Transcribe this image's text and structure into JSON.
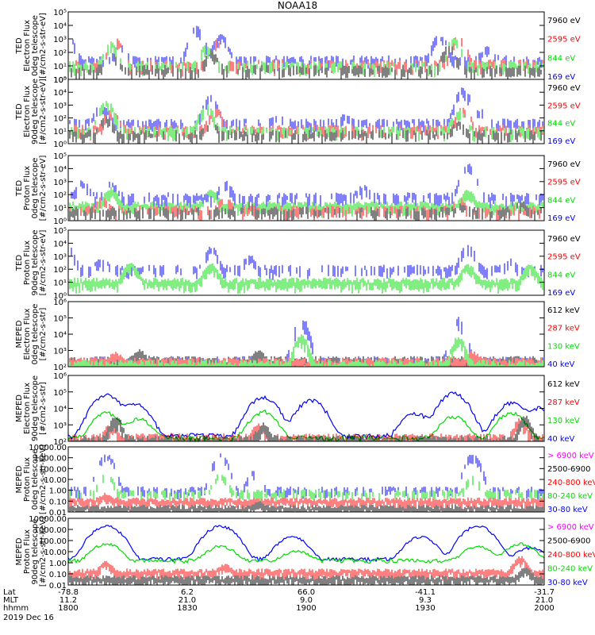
{
  "title": "NOAA18",
  "colors": {
    "black": "#000000",
    "red": "#ff0000",
    "green": "#00dd00",
    "blue": "#0000ff",
    "magenta": "#ff00ff"
  },
  "footer": {
    "row_labels": [
      "Lat",
      "MLT",
      "hhmm"
    ],
    "columns": [
      {
        "lat": "-78.8",
        "mlt": "11.2",
        "hhmm": "1800"
      },
      {
        "lat": "6.2",
        "mlt": "21.0",
        "hhmm": "1830"
      },
      {
        "lat": "66.0",
        "mlt": "9.0",
        "hhmm": "1900"
      },
      {
        "lat": "-41.1",
        "mlt": "9.3",
        "hhmm": "1930"
      },
      {
        "lat": "-31.7",
        "mlt": "21.0",
        "hhmm": "2000"
      }
    ],
    "date": "2019 Dec 16"
  },
  "chart_data": [
    {
      "type": "line",
      "ylabel": [
        "TED",
        "Electron Flux",
        "0deg telescope",
        "[#/cm2-s-str-eV]"
      ],
      "ytick_labels": [
        "10⁰",
        "10¹",
        "10²",
        "10³",
        "10⁴",
        "10⁵"
      ],
      "ylim": [
        1,
        100000
      ],
      "yscale": "log",
      "legend": [
        {
          "label": "7960 eV",
          "color": "black"
        },
        {
          "label": "2595 eV",
          "color": "red"
        },
        {
          "label": "844 eV",
          "color": "green"
        },
        {
          "label": "169 eV",
          "color": "blue"
        }
      ],
      "series": [
        {
          "color": "blue",
          "mode": "spikes",
          "base": 40,
          "peaks": [
            [
              0.0,
              1500
            ],
            [
              0.11,
              300
            ],
            [
              0.27,
              8000
            ],
            [
              0.32,
              2000
            ],
            [
              0.78,
              2000
            ],
            [
              0.88,
              200
            ]
          ]
        },
        {
          "color": "red",
          "mode": "spikes",
          "base": 20,
          "peaks": [
            [
              0.1,
              1000
            ],
            [
              0.31,
              900
            ],
            [
              0.82,
              2000
            ]
          ]
        },
        {
          "color": "green",
          "mode": "spikes",
          "base": 15,
          "peaks": [
            [
              0.09,
              500
            ],
            [
              0.29,
              300
            ],
            [
              0.81,
              1000
            ]
          ]
        },
        {
          "color": "black",
          "mode": "spikes",
          "base": 8,
          "peaks": [
            [
              0.09,
              100
            ],
            [
              0.3,
              100
            ],
            [
              0.8,
              300
            ]
          ]
        }
      ]
    },
    {
      "type": "line",
      "ylabel": [
        "TED",
        "Electron Flux",
        "90deg telescope",
        "[#/cm2-s-str-eV]"
      ],
      "ytick_labels": [
        "10⁰",
        "10¹",
        "10²",
        "10³",
        "10⁴",
        "10⁵"
      ],
      "ylim": [
        1,
        100000
      ],
      "yscale": "log",
      "legend": [
        {
          "label": "7960 eV",
          "color": "black"
        },
        {
          "label": "2595 eV",
          "color": "red"
        },
        {
          "label": "844 eV",
          "color": "green"
        },
        {
          "label": "169 eV",
          "color": "blue"
        }
      ],
      "series": [
        {
          "color": "blue",
          "mode": "spikes",
          "base": 60,
          "peaks": [
            [
              0.07,
              1000
            ],
            [
              0.3,
              5000
            ],
            [
              0.44,
              100
            ],
            [
              0.58,
              100
            ],
            [
              0.83,
              20000
            ],
            [
              0.87,
              500
            ]
          ]
        },
        {
          "color": "red",
          "mode": "spikes",
          "base": 20,
          "peaks": [
            [
              0.09,
              400
            ],
            [
              0.31,
              500
            ],
            [
              0.83,
              600
            ]
          ]
        },
        {
          "color": "green",
          "mode": "spikes",
          "base": 15,
          "peaks": [
            [
              0.08,
              2000
            ],
            [
              0.29,
              1000
            ],
            [
              0.82,
              400
            ]
          ]
        },
        {
          "color": "black",
          "mode": "spikes",
          "base": 8,
          "peaks": [
            [
              0.08,
              100
            ],
            [
              0.3,
              40
            ],
            [
              0.82,
              50
            ]
          ]
        }
      ]
    },
    {
      "type": "line",
      "ylabel": [
        "TED",
        "Proton Flux",
        "0deg telescope",
        "[#/cm2-s-str-eV]"
      ],
      "ytick_labels": [
        "10⁰",
        "10¹",
        "10²",
        "10³",
        "10⁴",
        "10⁵"
      ],
      "ylim": [
        1,
        100000
      ],
      "yscale": "log",
      "legend": [
        {
          "label": "7960 eV",
          "color": "black"
        },
        {
          "label": "2595 eV",
          "color": "red"
        },
        {
          "label": "844 eV",
          "color": "green"
        },
        {
          "label": "169 eV",
          "color": "blue"
        }
      ],
      "series": [
        {
          "color": "green",
          "mode": "noise",
          "base": 20,
          "peaks": [
            [
              0.09,
              300
            ],
            [
              0.3,
              200
            ],
            [
              0.84,
              200
            ]
          ]
        },
        {
          "color": "blue",
          "mode": "spikes",
          "base": 100,
          "peaks": [
            [
              0.03,
              1000
            ],
            [
              0.09,
              800
            ],
            [
              0.33,
              1000
            ],
            [
              0.62,
              400
            ],
            [
              0.84,
              20000
            ]
          ]
        },
        {
          "color": "red",
          "mode": "spikes",
          "base": 10,
          "peaks": [
            [
              0.07,
              50
            ],
            [
              0.33,
              50
            ],
            [
              0.82,
              40
            ]
          ]
        },
        {
          "color": "black",
          "mode": "spikes",
          "base": 8,
          "peaks": [
            [
              0.38,
              15
            ],
            [
              0.83,
              10
            ],
            [
              0.95,
              20
            ]
          ]
        }
      ]
    },
    {
      "type": "line",
      "ylabel": [
        "TED",
        "Proton Flux",
        "90deg telescope",
        "[#/cm2-s-str-eV]"
      ],
      "ytick_labels": [
        "10⁰",
        "10¹",
        "10²",
        "10³",
        "10⁴",
        "10⁵"
      ],
      "ylim": [
        1,
        100000
      ],
      "yscale": "log",
      "legend": [
        {
          "label": "7960 eV",
          "color": "black"
        },
        {
          "label": "2595 eV",
          "color": "red"
        },
        {
          "label": "844 eV",
          "color": "green"
        },
        {
          "label": "169 eV",
          "color": "blue"
        }
      ],
      "series": [
        {
          "color": "blue",
          "mode": "spikes",
          "base": 150,
          "peaks": [
            [
              0.0,
              5000
            ],
            [
              0.07,
              500
            ],
            [
              0.3,
              5000
            ],
            [
              0.38,
              1000
            ],
            [
              0.84,
              8000
            ],
            [
              0.93,
              400
            ]
          ]
        },
        {
          "color": "green",
          "mode": "noise",
          "base": 15,
          "peaks": [
            [
              0.13,
              300
            ],
            [
              0.3,
              300
            ],
            [
              0.84,
              200
            ],
            [
              0.97,
              200
            ]
          ]
        }
      ]
    },
    {
      "type": "line",
      "ylabel": [
        "MEPED",
        "Electron Flux",
        "0deg telescope",
        "[#/cm2-s-str]"
      ],
      "ytick_labels": [
        "10²",
        "10³",
        "10⁴",
        "10⁵",
        "10⁶"
      ],
      "ylim": [
        100,
        1000000
      ],
      "yscale": "log",
      "legend": [
        {
          "label": "612 keV",
          "color": "black"
        },
        {
          "label": "287 keV",
          "color": "red"
        },
        {
          "label": "130 keV",
          "color": "green"
        },
        {
          "label": "40 keV",
          "color": "blue"
        }
      ],
      "series": [
        {
          "color": "blue",
          "mode": "spikes",
          "base": 300,
          "peaks": [
            [
              0.49,
              100000
            ],
            [
              0.82,
              100000
            ]
          ]
        },
        {
          "color": "black",
          "mode": "noise",
          "base": 300,
          "peaks": [
            [
              0.15,
              600
            ],
            [
              0.4,
              600
            ]
          ]
        },
        {
          "color": "red",
          "mode": "noise",
          "base": 250,
          "peaks": [
            [
              0.1,
              500
            ],
            [
              0.85,
              500
            ]
          ]
        },
        {
          "color": "green",
          "mode": "noise",
          "base": 180,
          "peaks": [
            [
              0.49,
              8000
            ],
            [
              0.82,
              6000
            ]
          ]
        }
      ]
    },
    {
      "type": "line",
      "ylabel": [
        "MEPED",
        "Electron Flux",
        "90deg telescope",
        "[#/cm2-s-str]"
      ],
      "ytick_labels": [
        "10²",
        "10³",
        "10⁴",
        "10⁵",
        "10⁶"
      ],
      "ylim": [
        100,
        1000000
      ],
      "yscale": "log",
      "legend": [
        {
          "label": "612 keV",
          "color": "black"
        },
        {
          "label": "287 keV",
          "color": "red"
        },
        {
          "label": "130 keV",
          "color": "green"
        },
        {
          "label": "40 keV",
          "color": "blue"
        }
      ],
      "series": [
        {
          "color": "blue",
          "mode": "smooth",
          "base": 200,
          "peaks": [
            [
              0.08,
              60000
            ],
            [
              0.14,
              20000
            ],
            [
              0.41,
              50000
            ],
            [
              0.51,
              30000
            ],
            [
              0.73,
              5000
            ],
            [
              0.81,
              80000
            ],
            [
              0.93,
              20000
            ],
            [
              0.99,
              10000
            ]
          ]
        },
        {
          "color": "green",
          "mode": "smooth",
          "base": 150,
          "peaks": [
            [
              0.08,
              5000
            ],
            [
              0.15,
              2000
            ],
            [
              0.41,
              6000
            ],
            [
              0.81,
              3000
            ],
            [
              0.93,
              5000
            ]
          ]
        },
        {
          "color": "red",
          "mode": "noise",
          "base": 200,
          "peaks": [
            [
              0.09,
              1000
            ],
            [
              0.4,
              1000
            ],
            [
              0.95,
              2000
            ]
          ]
        },
        {
          "color": "black",
          "mode": "noise",
          "base": 150,
          "peaks": [
            [
              0.1,
              3000
            ],
            [
              0.41,
              1000
            ],
            [
              0.96,
              3000
            ]
          ]
        }
      ]
    },
    {
      "type": "line",
      "ylabel": [
        "MEPED",
        "Proton Flux",
        "0deg telescope",
        "[#/cm2-s-str-keV]"
      ],
      "ytick_labels": [
        "0.01",
        "0.10",
        "1.00",
        "10.00",
        "100.00",
        "1000.00",
        "10000.00"
      ],
      "ylim": [
        0.01,
        10000
      ],
      "yscale": "log",
      "legend": [
        {
          "label": "> 6900 keV",
          "color": "magenta"
        },
        {
          "label": "2500-6900",
          "color": "black"
        },
        {
          "label": "240-800 keV",
          "color": "red"
        },
        {
          "label": "80-240 keV",
          "color": "green"
        },
        {
          "label": "30-80 keV",
          "color": "blue"
        }
      ],
      "series": [
        {
          "color": "blue",
          "mode": "spikes",
          "base": 1.5,
          "peaks": [
            [
              0.08,
              2000
            ],
            [
              0.32,
              2000
            ],
            [
              0.39,
              50
            ],
            [
              0.85,
              2000
            ]
          ]
        },
        {
          "color": "green",
          "mode": "spikes",
          "base": 0.8,
          "peaks": [
            [
              0.08,
              30
            ],
            [
              0.32,
              30
            ],
            [
              0.85,
              20
            ]
          ]
        },
        {
          "color": "red",
          "mode": "noise",
          "base": 0.15,
          "peaks": [
            [
              0.08,
              0.3
            ]
          ]
        },
        {
          "color": "black",
          "mode": "noise",
          "base": 0.03,
          "peaks": [
            [
              0.4,
              0.05
            ]
          ]
        }
      ]
    },
    {
      "type": "line",
      "ylabel": [
        "MEPED",
        "Proton Flux",
        "90deg telescope",
        "[#/cm2-s-str-keV]"
      ],
      "ytick_labels": [
        "0.01",
        "0.10",
        "1.00",
        "10.00",
        "100.00",
        "1000.00",
        "10000.00"
      ],
      "ylim": [
        0.01,
        10000
      ],
      "yscale": "log",
      "legend": [
        {
          "label": "> 6900 keV",
          "color": "magenta"
        },
        {
          "label": "2500-6900",
          "color": "black"
        },
        {
          "label": "240-800 keV",
          "color": "red"
        },
        {
          "label": "80-240 keV",
          "color": "green"
        },
        {
          "label": "30-80 keV",
          "color": "blue"
        }
      ],
      "series": [
        {
          "color": "blue",
          "mode": "smooth",
          "base": 2,
          "peaks": [
            [
              0.08,
              2000
            ],
            [
              0.32,
              2000
            ],
            [
              0.47,
              200
            ],
            [
              0.74,
              200
            ],
            [
              0.86,
              2000
            ],
            [
              0.97,
              20
            ]
          ]
        },
        {
          "color": "green",
          "mode": "smooth",
          "base": 1.5,
          "peaks": [
            [
              0.08,
              50
            ],
            [
              0.32,
              30
            ],
            [
              0.48,
              10
            ],
            [
              0.86,
              30
            ],
            [
              0.95,
              50
            ]
          ]
        },
        {
          "color": "red",
          "mode": "noise",
          "base": 0.2,
          "peaks": [
            [
              0.08,
              1
            ],
            [
              0.33,
              0.5
            ],
            [
              0.95,
              3
            ]
          ]
        },
        {
          "color": "black",
          "mode": "noise",
          "base": 0.05,
          "peaks": [
            [
              0.96,
              0.3
            ]
          ]
        }
      ]
    }
  ]
}
